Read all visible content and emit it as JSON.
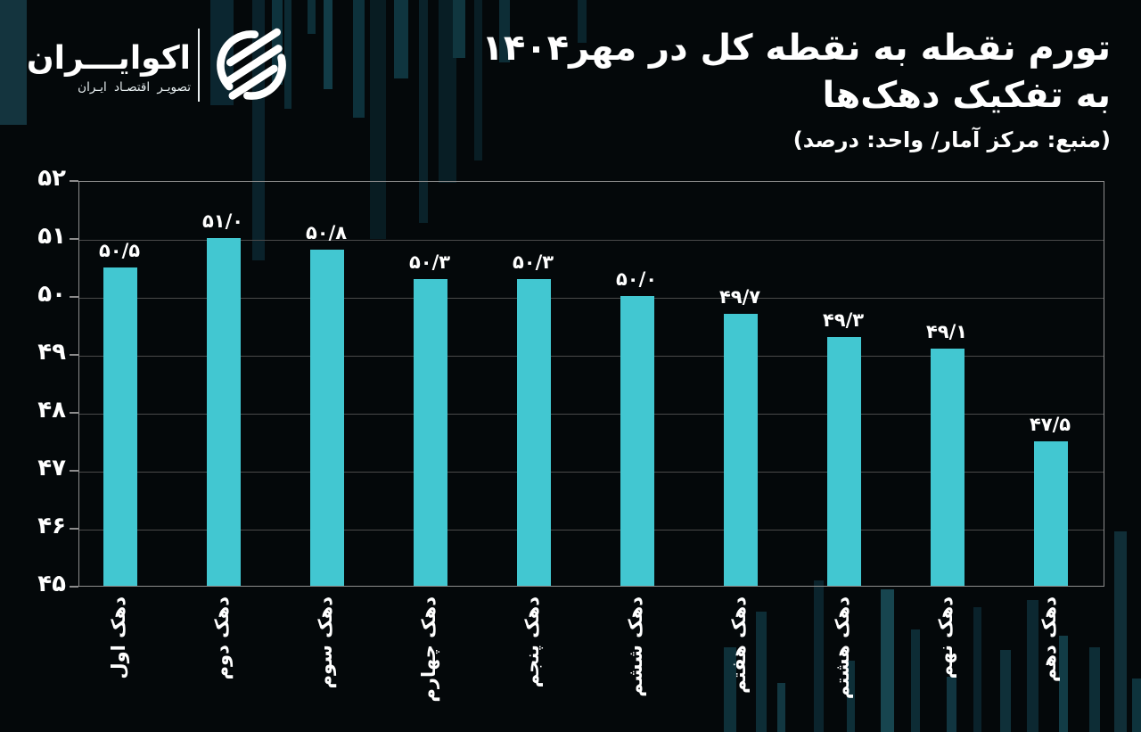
{
  "brand": {
    "name": "اکوایـــران",
    "tagline": "تصویـر اقتصـاد ایـران"
  },
  "header": {
    "title_line1": "تورم نقطه به نقطه کل در مهر۱۴۰۴",
    "title_line2": "به تفکیک دهک‌ها",
    "subtitle": "(منبع: مرکز آمار/ واحد: درصد)"
  },
  "chart_data": {
    "type": "bar",
    "title": "تورم نقطه به نقطه کل در مهر۱۴۰۴ به تفکیک دهک‌ها",
    "source_note": "(منبع: مرکز آمار/ واحد: درصد)",
    "categories": [
      "دهک اول",
      "دهک دوم",
      "دهک سوم",
      "دهک چهارم",
      "دهک پنجم",
      "دهک ششم",
      "دهک هفتم",
      "دهک هشتم",
      "دهک نهم",
      "دهک دهم"
    ],
    "values": [
      50.5,
      51.0,
      50.8,
      50.3,
      50.3,
      50.0,
      49.7,
      49.3,
      49.1,
      47.5
    ],
    "value_labels": [
      "۵۰/۵",
      "۵۱/۰",
      "۵۰/۸",
      "۵۰/۳",
      "۵۰/۳",
      "۵۰/۰",
      "۴۹/۷",
      "۴۹/۳",
      "۴۹/۱",
      "۴۷/۵"
    ],
    "y_ticks": [
      45,
      46,
      47,
      48,
      49,
      50,
      51,
      52
    ],
    "y_tick_labels": [
      "۴۵",
      "۴۶",
      "۴۷",
      "۴۸",
      "۴۹",
      "۵۰",
      "۵۱",
      "۵۲"
    ],
    "ylim": [
      45,
      52
    ],
    "xlabel": "",
    "ylabel": "",
    "grid": true,
    "legend": "none",
    "bar_color": "#42c7d1",
    "background_color": "#04080a",
    "gridline_color": "#4a4a4a",
    "axis_color": "#8d8d8d",
    "text_color": "#ffffff"
  }
}
